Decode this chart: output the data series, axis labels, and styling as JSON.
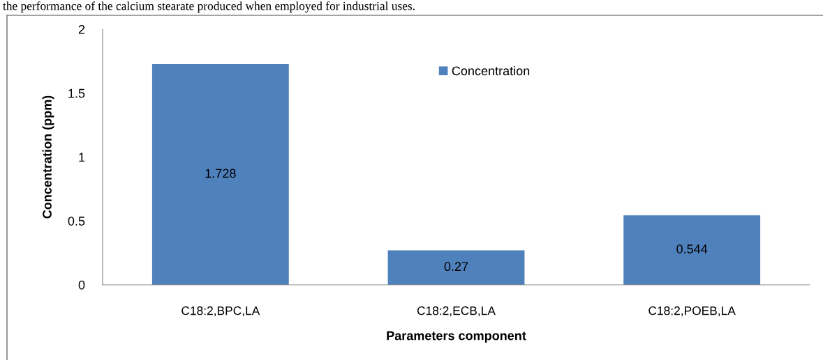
{
  "chart_data": {
    "type": "bar",
    "xlabel": "Parameters component",
    "ylabel": "Concentration (ppm)",
    "categories": [
      "C18:2,BPC,LA",
      "C18:2,ECB,LA",
      "C18:2,POEB,LA"
    ],
    "series": [
      {
        "name": "Concentration",
        "color": "#4f81bd",
        "values": [
          1.728,
          0.27,
          0.544
        ]
      }
    ],
    "ylim": [
      0,
      2
    ],
    "yticks": [
      0,
      0.5,
      1,
      1.5,
      2
    ],
    "data_labels": true,
    "legend": "top",
    "grid": false,
    "annotations": [
      "the performance of the calcium stearate produced when employed for industrial uses."
    ]
  }
}
